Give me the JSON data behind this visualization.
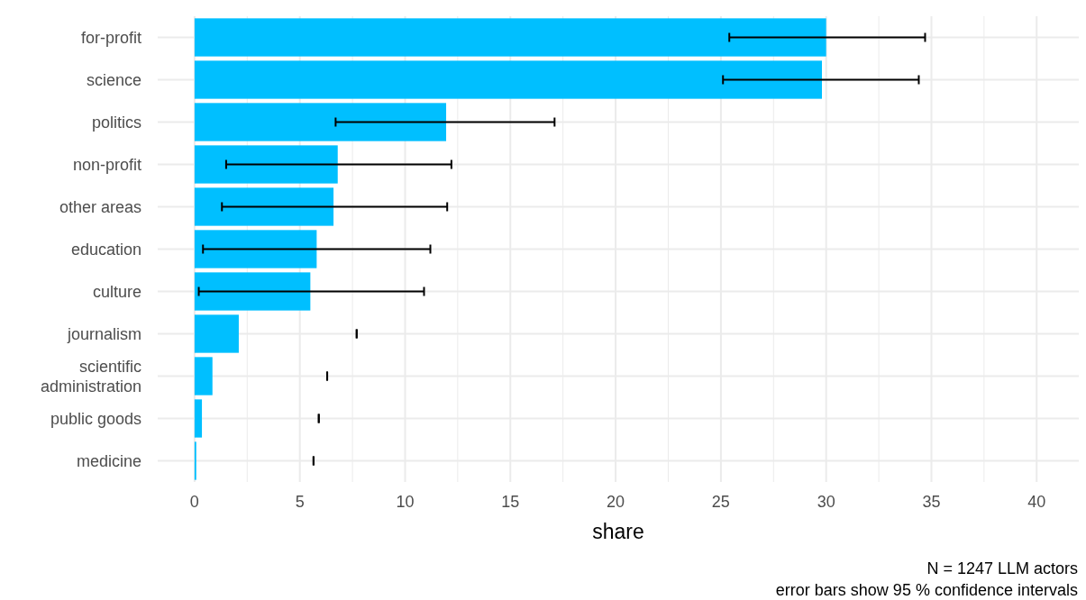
{
  "chart_data": {
    "type": "bar",
    "orientation": "horizontal",
    "xlabel": "share",
    "categories": [
      "for-profit",
      "science",
      "politics",
      "non-profit",
      "other areas",
      "education",
      "culture",
      "journalism",
      "scientific\nadministration",
      "public goods",
      "medicine"
    ],
    "values": [
      30.0,
      29.8,
      11.95,
      6.8,
      6.6,
      5.8,
      5.5,
      2.1,
      0.85,
      0.35,
      0.08
    ],
    "errors": [
      [
        25.4,
        34.7
      ],
      [
        25.1,
        34.4
      ],
      [
        6.7,
        17.1
      ],
      [
        1.5,
        12.2
      ],
      [
        1.3,
        12.0
      ],
      [
        0.4,
        11.2
      ],
      [
        0.2,
        10.9
      ],
      [
        7.7,
        7.7
      ],
      [
        6.3,
        6.3
      ],
      [
        5.9,
        5.9
      ],
      [
        5.65,
        5.65
      ]
    ],
    "color": "#00bfff",
    "xlim": [
      -1.75,
      42
    ],
    "xticks": [
      0,
      {
        "value": 2.5,
        "label": null
      },
      5,
      {
        "value": 7.5,
        "label": null
      },
      10,
      {
        "value": 12.5,
        "label": null
      },
      15,
      {
        "value": 17.5,
        "label": null
      },
      20,
      {
        "value": 22.5,
        "label": null
      },
      25,
      {
        "value": 27.5,
        "label": null
      },
      30,
      {
        "value": 32.5,
        "label": null
      },
      35,
      {
        "value": 37.5,
        "label": null
      },
      40
    ],
    "grid": true,
    "annotations": [
      "N = 1247 LLM actors",
      "error bars show 95 % confidence intervals"
    ]
  }
}
